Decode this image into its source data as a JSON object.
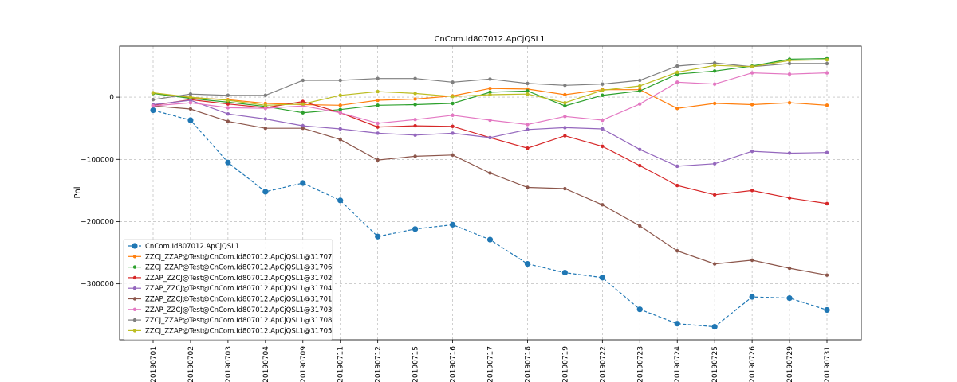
{
  "chart_data": {
    "type": "line",
    "title": "CnCom.Id807012.ApCjQSL1",
    "xlabel": "",
    "ylabel": "Pnl",
    "x": [
      "20190701",
      "20190702",
      "20190703",
      "20190704",
      "20190709",
      "20190711",
      "20190712",
      "20190715",
      "20190716",
      "20190717",
      "20190718",
      "20190719",
      "20190722",
      "20190723",
      "20190724",
      "20190725",
      "20190726",
      "20190729",
      "20190731"
    ],
    "ylim": [
      -390000,
      82000
    ],
    "yticks": [
      0,
      -100000,
      -200000,
      -300000
    ],
    "ytick_labels": [
      "0",
      "−100000",
      "−200000",
      "−300000"
    ],
    "grid": true,
    "legend_position": "lower-left",
    "series": [
      {
        "name": "CnCom.Id807012.ApCjQSL1",
        "color": "#1f77b4",
        "style": "dashed",
        "marker_size": 3.6,
        "values": [
          -21000,
          -37000,
          -105000,
          -152000,
          -138000,
          -166000,
          -224000,
          -212000,
          -205000,
          -229000,
          -268000,
          -282000,
          -290000,
          -341000,
          -364000,
          -369000,
          -321000,
          -323000,
          -342000
        ]
      },
      {
        "name": "ZZCJ_ZZAP@Test@CnCom.Id807012.ApCjQSL1@31707",
        "color": "#ff7f0e",
        "style": "solid",
        "marker_size": 2.2,
        "values": [
          6000,
          -1000,
          -4000,
          -10000,
          -12000,
          -13000,
          -5000,
          -3000,
          2000,
          14000,
          13000,
          4000,
          12000,
          12000,
          -18000,
          -10000,
          -12000,
          -9000,
          -13000
        ]
      },
      {
        "name": "ZZCJ_ZZAP@Test@CnCom.Id807012.ApCjQSL1@31706",
        "color": "#2ca02c",
        "style": "solid",
        "marker_size": 2.2,
        "values": [
          6000,
          -2000,
          -8000,
          -15000,
          -25000,
          -20000,
          -13000,
          -12000,
          -10000,
          8000,
          10000,
          -14000,
          3000,
          10000,
          37000,
          42000,
          50000,
          61000,
          62000
        ]
      },
      {
        "name": "ZZAP_ZZCJ@Test@CnCom.Id807012.ApCjQSL1@31702",
        "color": "#d62728",
        "style": "solid",
        "marker_size": 2.2,
        "values": [
          -13000,
          -4000,
          -11000,
          -17000,
          -7000,
          -25000,
          -48000,
          -46000,
          -47000,
          -65000,
          -82000,
          -62000,
          -79000,
          -110000,
          -142000,
          -157000,
          -150000,
          -162000,
          -171000
        ]
      },
      {
        "name": "ZZAP_ZZCJ@Test@CnCom.Id807012.ApCjQSL1@31704",
        "color": "#9467bd",
        "style": "solid",
        "marker_size": 2.2,
        "values": [
          -12000,
          -5000,
          -27000,
          -35000,
          -46000,
          -51000,
          -58000,
          -61000,
          -58000,
          -65000,
          -52000,
          -49000,
          -51000,
          -84000,
          -111000,
          -107000,
          -87000,
          -90000,
          -89000
        ]
      },
      {
        "name": "ZZAP_ZZCJ@Test@CnCom.Id807012.ApCjQSL1@31701",
        "color": "#8c564b",
        "style": "solid",
        "marker_size": 2.2,
        "values": [
          -14000,
          -19000,
          -39000,
          -50000,
          -50000,
          -68000,
          -101000,
          -95000,
          -93000,
          -122000,
          -145000,
          -147000,
          -173000,
          -207000,
          -247000,
          -268000,
          -262000,
          -275000,
          -286000
        ]
      },
      {
        "name": "ZZAP_ZZCJ@Test@CnCom.Id807012.ApCjQSL1@31703",
        "color": "#e377c2",
        "style": "solid",
        "marker_size": 2.2,
        "values": [
          -14000,
          -9000,
          -17000,
          -18000,
          -14000,
          -25000,
          -42000,
          -36000,
          -29000,
          -37000,
          -44000,
          -31000,
          -37000,
          -11000,
          24000,
          21000,
          39000,
          37000,
          39000
        ]
      },
      {
        "name": "ZZCJ_ZZAP@Test@CnCom.Id807012.ApCjQSL1@31708",
        "color": "#7f7f7f",
        "style": "solid",
        "marker_size": 2.2,
        "values": [
          -4000,
          5000,
          3000,
          3000,
          27000,
          27000,
          30000,
          30000,
          24000,
          29000,
          22000,
          19000,
          21000,
          27000,
          50000,
          55000,
          49000,
          54000,
          54000
        ]
      },
      {
        "name": "ZZCJ_ZZAP@Test@CnCom.Id807012.ApCjQSL1@31705",
        "color": "#bcbd22",
        "style": "solid",
        "marker_size": 2.2,
        "values": [
          7000,
          0,
          -5000,
          -13000,
          -11000,
          3000,
          9000,
          6000,
          1000,
          4000,
          5000,
          -9000,
          11000,
          18000,
          40000,
          51000,
          49000,
          59000,
          60000
        ]
      }
    ]
  }
}
